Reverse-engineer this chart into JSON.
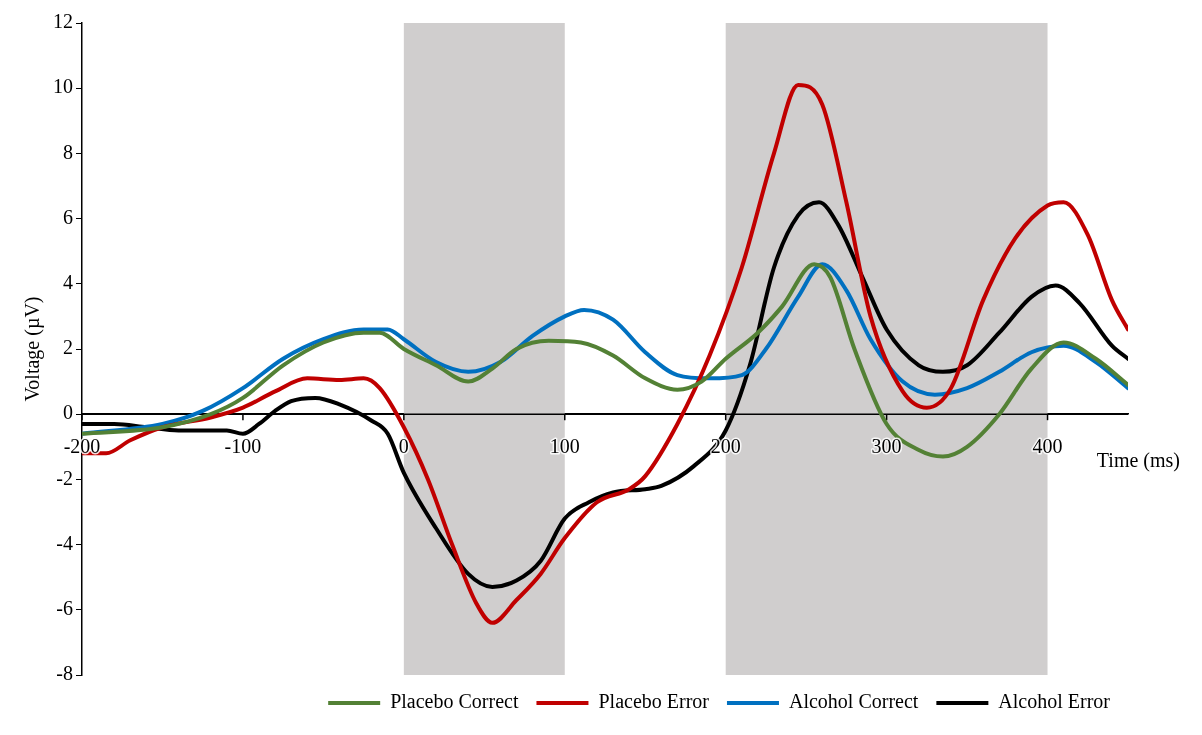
{
  "chart_data": {
    "type": "line",
    "xlabel": "Time (ms)",
    "ylabel": "Voltage (µV)",
    "xlim": [
      -200,
      450
    ],
    "xticks": [
      -200,
      -100,
      0,
      100,
      200,
      300,
      400
    ],
    "ylim": [
      -8,
      12
    ],
    "yticks": [
      -8,
      -6,
      -4,
      -2,
      0,
      2,
      4,
      6,
      8,
      10,
      12
    ],
    "grid": false,
    "legend": "bottom",
    "marker": "none",
    "line_style": "solid",
    "bands": [
      {
        "axis": "x",
        "from": 0,
        "to": 100,
        "color": "#d0cece"
      },
      {
        "axis": "x",
        "from": 200,
        "to": 400,
        "color": "#d0cece"
      }
    ],
    "series": [
      {
        "name": "Placebo Correct",
        "color": "#538135",
        "x": [
          -200,
          -150,
          -120,
          -100,
          -75,
          -50,
          -25,
          -15,
          0,
          20,
          40,
          55,
          70,
          90,
          110,
          130,
          150,
          170,
          185,
          200,
          220,
          235,
          255,
          265,
          280,
          300,
          320,
          335,
          350,
          370,
          390,
          410,
          430,
          450
        ],
        "values": [
          -0.6,
          -0.4,
          0,
          0.5,
          1.5,
          2.2,
          2.5,
          2.5,
          2.0,
          1.5,
          1.0,
          1.4,
          2.0,
          2.25,
          2.2,
          1.8,
          1.1,
          0.75,
          1.0,
          1.7,
          2.5,
          3.3,
          4.6,
          4.2,
          2.0,
          -0.3,
          -1.1,
          -1.3,
          -1.0,
          0.0,
          1.4,
          2.2,
          1.7,
          0.9
        ]
      },
      {
        "name": "Placebo Error",
        "color": "#c00000",
        "x": [
          -200,
          -185,
          -170,
          -150,
          -120,
          -100,
          -80,
          -60,
          -40,
          -25,
          -15,
          0,
          15,
          30,
          45,
          55,
          70,
          85,
          100,
          120,
          140,
          150,
          170,
          190,
          210,
          230,
          245,
          260,
          275,
          290,
          310,
          325,
          340,
          360,
          380,
          400,
          410,
          425,
          440,
          450
        ],
        "values": [
          -1.2,
          -1.2,
          -0.8,
          -0.4,
          -0.1,
          0.2,
          0.7,
          1.1,
          1.05,
          1.1,
          0.8,
          -0.4,
          -2.0,
          -4.0,
          -5.8,
          -6.4,
          -5.7,
          -4.9,
          -3.8,
          -2.7,
          -2.3,
          -1.9,
          -0.3,
          1.8,
          4.5,
          8.0,
          10.1,
          9.5,
          6.5,
          3.0,
          0.7,
          0.2,
          0.8,
          3.5,
          5.4,
          6.4,
          6.5,
          5.5,
          3.5,
          2.6
        ]
      },
      {
        "name": "Alcohol Correct",
        "color": "#0070c0",
        "x": [
          -200,
          -150,
          -125,
          -100,
          -75,
          -50,
          -25,
          -10,
          0,
          20,
          40,
          60,
          80,
          100,
          112,
          130,
          150,
          170,
          190,
          210,
          225,
          245,
          260,
          275,
          290,
          310,
          330,
          350,
          370,
          390,
          410,
          430,
          450
        ],
        "values": [
          -0.6,
          -0.3,
          0.1,
          0.8,
          1.7,
          2.3,
          2.6,
          2.6,
          2.3,
          1.6,
          1.3,
          1.6,
          2.4,
          3.0,
          3.2,
          2.9,
          1.9,
          1.2,
          1.1,
          1.2,
          2.0,
          3.6,
          4.6,
          3.8,
          2.3,
          1.0,
          0.6,
          0.8,
          1.3,
          1.9,
          2.1,
          1.6,
          0.8
        ]
      },
      {
        "name": "Alcohol Error",
        "color": "#000000",
        "x": [
          -200,
          -180,
          -160,
          -140,
          -110,
          -100,
          -90,
          -80,
          -70,
          -55,
          -40,
          -20,
          -10,
          0,
          20,
          40,
          55,
          70,
          85,
          100,
          115,
          130,
          150,
          160,
          180,
          200,
          215,
          230,
          245,
          258,
          270,
          285,
          300,
          320,
          335,
          350,
          370,
          390,
          405,
          420,
          440,
          450
        ],
        "values": [
          -0.3,
          -0.3,
          -0.4,
          -0.5,
          -0.5,
          -0.6,
          -0.3,
          0.1,
          0.4,
          0.5,
          0.3,
          -0.2,
          -0.6,
          -1.8,
          -3.5,
          -4.9,
          -5.3,
          -5.1,
          -4.5,
          -3.2,
          -2.7,
          -2.4,
          -2.3,
          -2.2,
          -1.6,
          -0.5,
          1.5,
          4.5,
          6.1,
          6.5,
          5.8,
          4.2,
          2.6,
          1.5,
          1.3,
          1.5,
          2.5,
          3.6,
          3.95,
          3.4,
          2.1,
          1.7
        ]
      }
    ]
  }
}
